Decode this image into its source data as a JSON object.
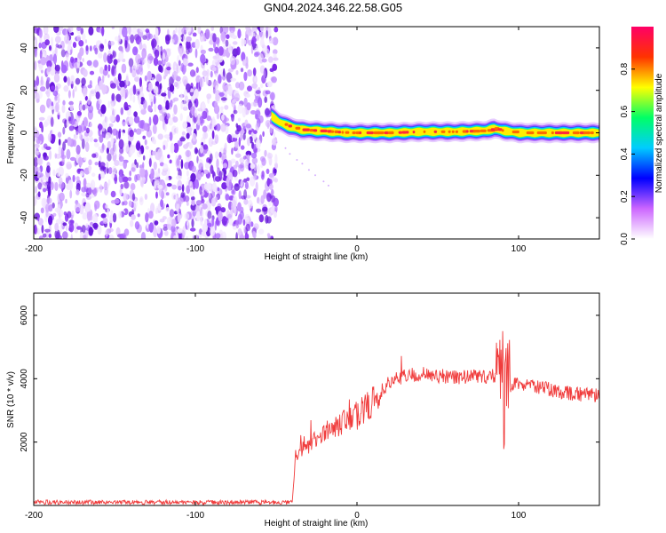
{
  "figure_title": "GN04.2024.346.22.58.G05",
  "chart_data": [
    {
      "type": "heatmap",
      "title": "GN04.2024.346.22.58.G05",
      "xlabel": "Height of straight line (km)",
      "ylabel": "Frequency (Hz)",
      "xlim": [
        -200,
        150
      ],
      "ylim": [
        -50,
        50
      ],
      "x_ticks": [
        "-200",
        "-100",
        "0",
        "100"
      ],
      "y_ticks": [
        "-40",
        "-20",
        "0",
        "20",
        "40"
      ],
      "colorbar": {
        "label": "Normalized spectral amplitude",
        "range": [
          0,
          1
        ],
        "ticks": [
          "0.0",
          "0.2",
          "0.4",
          "0.6",
          "0.8"
        ],
        "colors": [
          "#ffffff",
          "#cc66ff",
          "#0000ff",
          "#00ccff",
          "#00ff66",
          "#ffff00",
          "#ff3300",
          "#ff0066"
        ]
      },
      "noise_region": {
        "x_range": [
          -200,
          -50
        ],
        "freq_range": [
          -50,
          50
        ],
        "amplitude": 0.15
      },
      "tone_trace": {
        "x": [
          -53,
          -48,
          -42,
          -35,
          -25,
          -15,
          -5,
          0,
          10,
          20,
          40,
          60,
          80,
          85,
          90,
          100,
          120,
          150
        ],
        "freq": [
          8,
          5,
          3,
          1.5,
          1,
          0.5,
          0,
          0,
          0,
          0,
          0.5,
          0.5,
          1,
          2,
          1,
          0,
          0,
          0
        ],
        "peak_amplitude": 1.0
      },
      "grid": false
    },
    {
      "type": "line",
      "xlabel": "Height of straight line (km)",
      "ylabel": "SNR (10 * v/v)",
      "xlim": [
        -200,
        150
      ],
      "ylim": [
        0,
        6700
      ],
      "x_ticks": [
        "-200",
        "-100",
        "0",
        "100"
      ],
      "y_ticks": [
        "2000",
        "4000",
        "6000"
      ],
      "series_color": "#f03c3c",
      "series": [
        {
          "x": [
            -200,
            -150,
            -100,
            -60,
            -40,
            -38,
            -30,
            -20,
            -10,
            0,
            10,
            20,
            30,
            40,
            50,
            60,
            70,
            80,
            85,
            88,
            90,
            91,
            92,
            95,
            100,
            110,
            120,
            130,
            140,
            150
          ],
          "values": [
            100,
            100,
            100,
            100,
            100,
            1600,
            1900,
            2300,
            2600,
            2800,
            3300,
            3900,
            4100,
            4150,
            4100,
            4050,
            4050,
            4050,
            4100,
            4300,
            5200,
            2000,
            4400,
            3800,
            3850,
            3750,
            3650,
            3550,
            3500,
            3450
          ]
        }
      ],
      "grid": false
    }
  ]
}
